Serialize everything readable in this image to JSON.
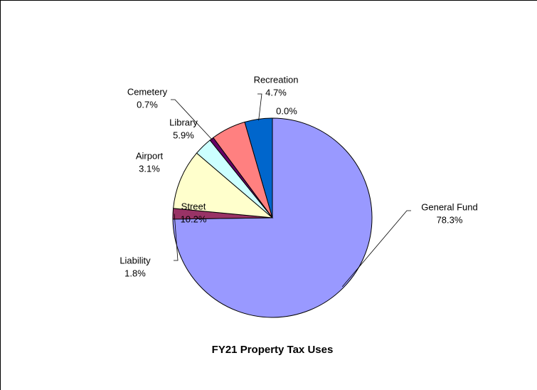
{
  "chart_data": {
    "type": "pie",
    "title": "FY21 Property Tax Uses",
    "categories": [
      "General  Fund",
      "Liability",
      "Street",
      "Airport",
      "Cemetery",
      "Library",
      "Recreation",
      null
    ],
    "values": [
      78.3,
      1.8,
      10.2,
      3.1,
      0.7,
      5.9,
      4.7,
      0.0
    ],
    "value_labels": [
      "78.3%",
      "1.8%",
      "10.2%",
      "3.1%",
      "0.7%",
      "5.9%",
      "4.7%",
      "0.0%"
    ],
    "colors": [
      "#9999ff",
      "#993366",
      "#ffffcc",
      "#ccffff",
      "#660066",
      "#ff8080",
      "#0066cc",
      "#000080"
    ]
  }
}
